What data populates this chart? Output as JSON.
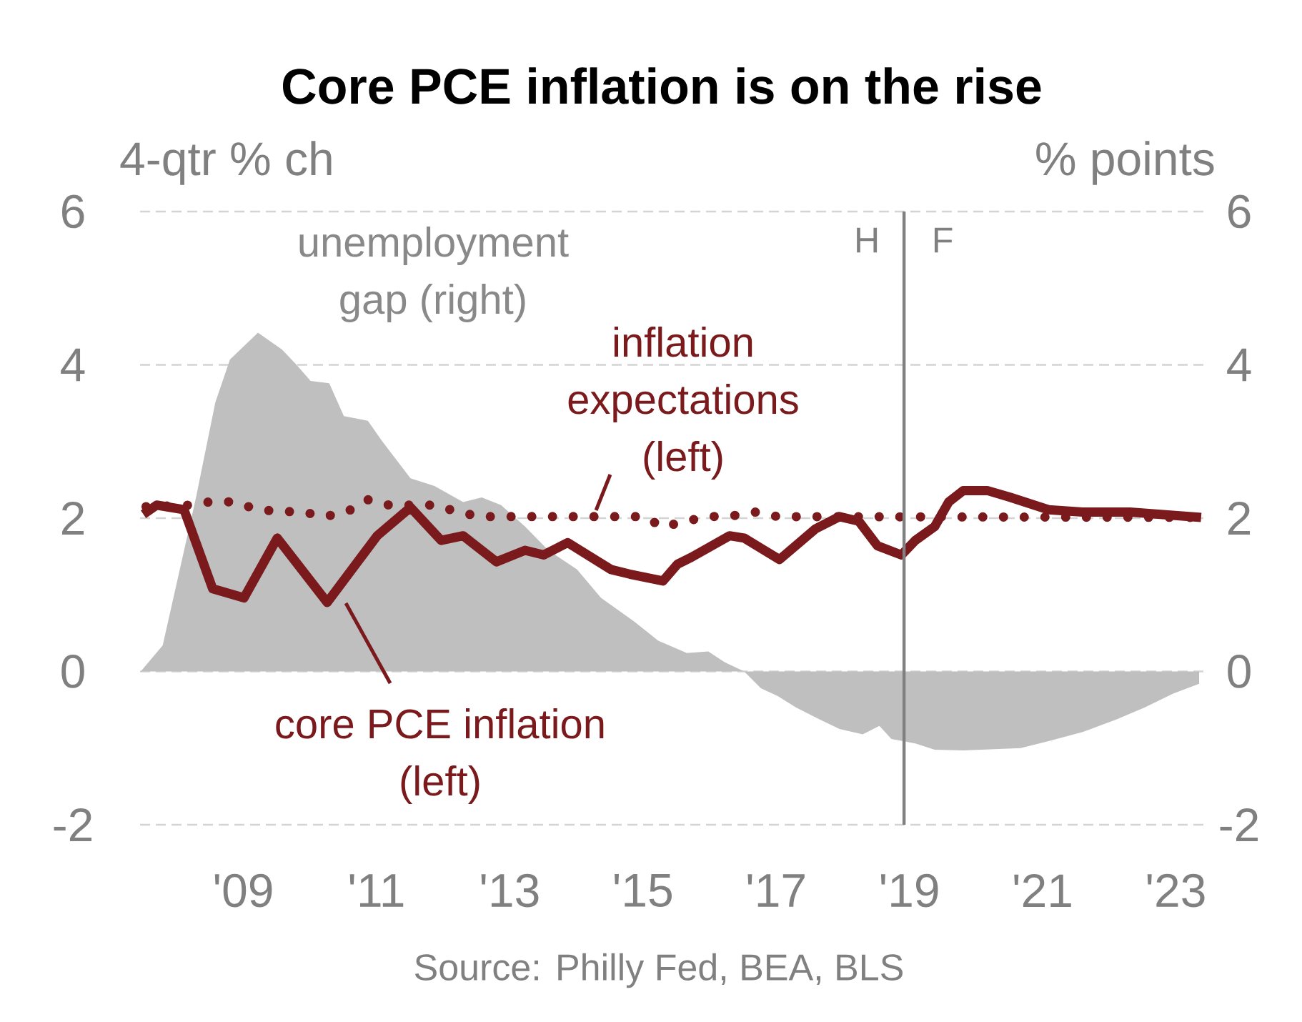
{
  "chart_data": {
    "type": "line",
    "title": "Core PCE inflation is on the rise",
    "ylabel": "4-qtr % ch",
    "y2label": "% points",
    "annotations": [
      "H",
      "F",
      "Source: Philly Fed, BEA, BLS"
    ],
    "xlim": [
      2007.45,
      2023.5
    ],
    "xticks": [
      {
        "value": 2009,
        "label": "'09"
      },
      {
        "value": 2011,
        "label": "'11"
      },
      {
        "value": 2013,
        "label": "'13"
      },
      {
        "value": 2015,
        "label": "'15"
      },
      {
        "value": 2017,
        "label": "'17"
      },
      {
        "value": 2019,
        "label": "'19"
      },
      {
        "value": 2021,
        "label": "'21"
      },
      {
        "value": 2023,
        "label": "'23"
      }
    ],
    "ylim": [
      -2,
      6
    ],
    "yticks": [
      -2,
      0,
      2,
      4,
      6
    ],
    "y2lim": [
      -2,
      6
    ],
    "y2ticks": [
      -2,
      0,
      2,
      4,
      6
    ],
    "grid": "y",
    "ref_lines": [
      {
        "axis": "x",
        "value": 2018.92,
        "color": "#808080"
      }
    ],
    "series": [
      {
        "name": "unemployment gap (right)",
        "type": "area",
        "axis": "y2",
        "color": "#bfbfbf",
        "x": [
          2007.46,
          2007.79,
          2008.29,
          2008.58,
          2008.8,
          2009.22,
          2009.58,
          2009.79,
          2010.01,
          2010.29,
          2010.51,
          2010.87,
          2011.08,
          2011.51,
          2011.87,
          2012.3,
          2012.58,
          2012.87,
          2013.23,
          2013.58,
          2014.01,
          2014.37,
          2014.87,
          2015.23,
          2015.66,
          2015.98,
          2016.23,
          2016.52,
          2016.77,
          2017.02,
          2017.3,
          2017.66,
          2017.95,
          2018.3,
          2018.55,
          2018.73,
          2019.09,
          2019.38,
          2019.81,
          2020.67,
          2021.09,
          2021.6,
          2022.1,
          2022.53,
          2022.96,
          2023.35
        ],
        "values": [
          0,
          0.34,
          2.27,
          3.51,
          4.07,
          4.42,
          4.2,
          4.01,
          3.79,
          3.76,
          3.33,
          3.27,
          3.01,
          2.52,
          2.42,
          2.21,
          2.27,
          2.17,
          1.89,
          1.58,
          1.33,
          0.96,
          0.65,
          0.4,
          0.24,
          0.26,
          0.12,
          0,
          -0.22,
          -0.32,
          -0.47,
          -0.63,
          -0.75,
          -0.82,
          -0.71,
          -0.88,
          -0.94,
          -1.02,
          -1.03,
          -1.0,
          -0.91,
          -0.79,
          -0.63,
          -0.47,
          -0.29,
          -0.16
        ]
      },
      {
        "name": "core PCE inflation (left)",
        "line_style": "solid",
        "color": "#7b1a1c",
        "x": [
          2007.5,
          2007.7,
          2008.11,
          2008.54,
          2009.01,
          2009.51,
          2010.26,
          2011.01,
          2011.51,
          2011.97,
          2012.3,
          2012.8,
          2013.23,
          2013.51,
          2013.87,
          2014.52,
          2014.8,
          2015.3,
          2015.52,
          2015.73,
          2016.3,
          2016.52,
          2017.05,
          2017.59,
          2017.95,
          2018.24,
          2018.52,
          2018.88,
          2019.09,
          2019.38,
          2019.59,
          2019.81,
          2020.17,
          2020.52,
          2021.09,
          2021.6,
          2022.31,
          2023.38
        ],
        "values": [
          2.05,
          2.17,
          2.11,
          1.08,
          0.96,
          1.74,
          0.9,
          1.77,
          2.14,
          1.71,
          1.77,
          1.43,
          1.58,
          1.52,
          1.68,
          1.33,
          1.27,
          1.18,
          1.4,
          1.49,
          1.77,
          1.74,
          1.46,
          1.86,
          2.02,
          1.96,
          1.64,
          1.52,
          1.71,
          1.89,
          2.21,
          2.36,
          2.36,
          2.27,
          2.11,
          2.08,
          2.08,
          2.01
        ]
      },
      {
        "name": "inflation expectations (left)",
        "line_style": "dotted",
        "color": "#7b1a1c",
        "x": [
          2007.54,
          2008.22,
          2008.54,
          2008.86,
          2009.22,
          2009.54,
          2009.9,
          2010.22,
          2010.55,
          2010.87,
          2011.19,
          2011.87,
          2012.23,
          2012.55,
          2015.02,
          2015.3,
          2015.62,
          2016.02,
          2016.34,
          2016.7,
          2017.02,
          2023.38
        ],
        "values": [
          2.15,
          2.17,
          2.22,
          2.21,
          2.11,
          2.09,
          2.08,
          2.02,
          2.08,
          2.24,
          2.17,
          2.17,
          2.08,
          2.02,
          2.02,
          1.88,
          1.96,
          2.02,
          2.03,
          2.08,
          2.02,
          2.01
        ]
      }
    ]
  }
}
